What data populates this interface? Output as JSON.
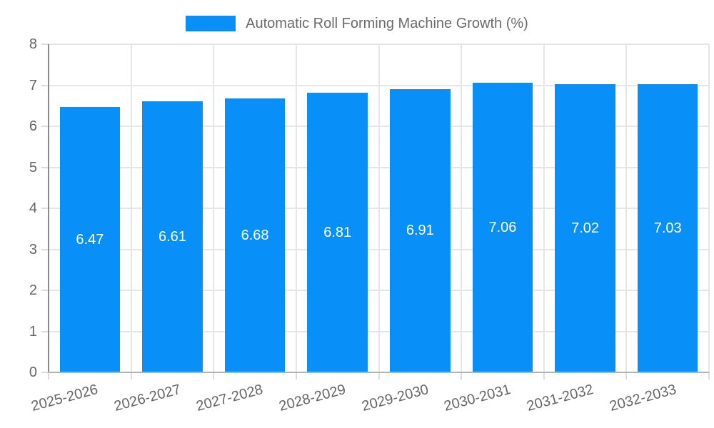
{
  "legend": {
    "label": "Automatic Roll Forming Machine Growth (%)"
  },
  "chart_data": {
    "type": "bar",
    "title": "Automatic Roll Forming Machine Growth (%)",
    "categories": [
      "2025-2026",
      "2026-2027",
      "2027-2028",
      "2028-2029",
      "2029-2030",
      "2030-2031",
      "2031-2032",
      "2032-2033"
    ],
    "values": [
      6.47,
      6.61,
      6.68,
      6.81,
      6.91,
      7.06,
      7.02,
      7.03
    ],
    "value_labels": [
      "6.47",
      "6.61",
      "6.68",
      "6.81",
      "6.91",
      "7.06",
      "7.02",
      "7.03"
    ],
    "xlabel": "",
    "ylabel": "",
    "ylim": [
      0,
      8
    ],
    "ytick_step": 1,
    "ytick_labels": [
      "0",
      "1",
      "2",
      "3",
      "4",
      "5",
      "6",
      "7",
      "8"
    ],
    "grid": true,
    "legend_position": "top",
    "x_label_rotation_deg": -15,
    "bar_color": "#0890f8",
    "value_label_color": "#ffffff",
    "axis_text_color": "#666666",
    "gridline_color": "#e6e6e6",
    "background_color": "#ffffff"
  }
}
